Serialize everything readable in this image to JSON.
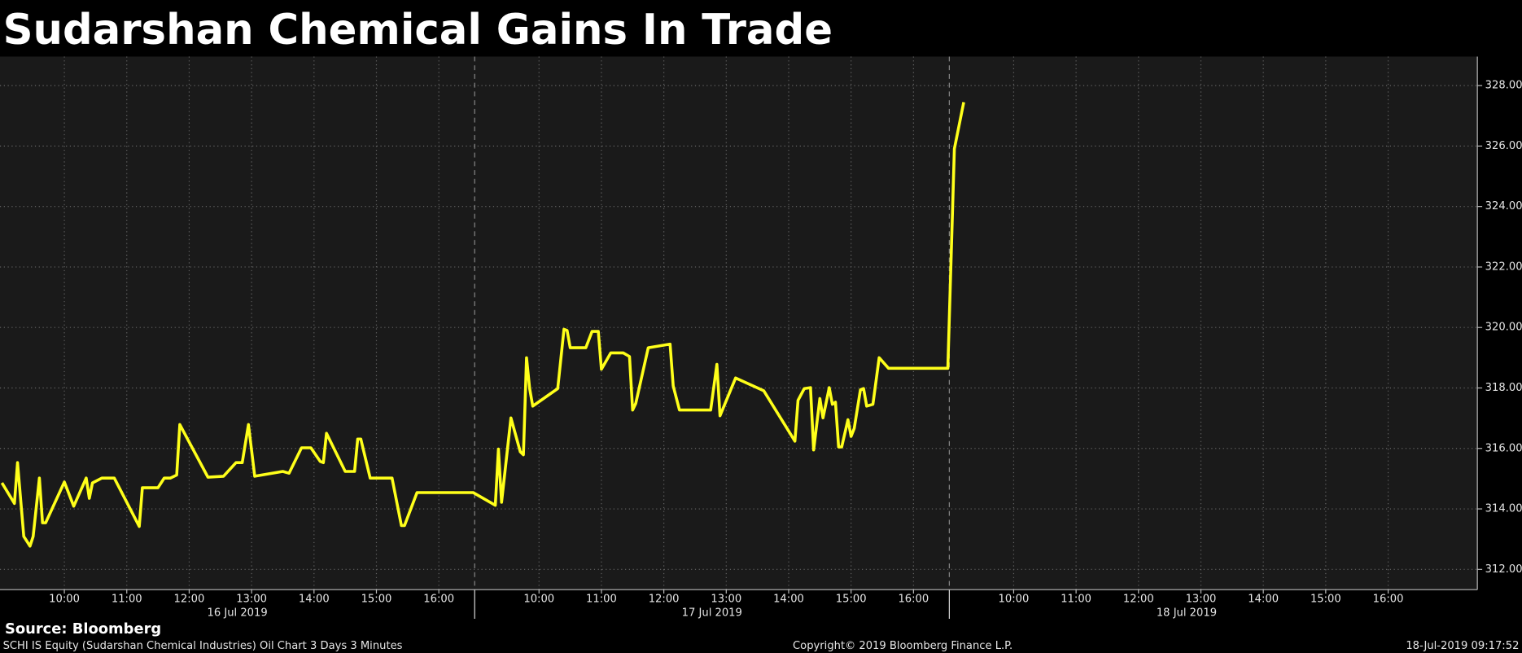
{
  "chart_data": {
    "type": "line",
    "title": "Sudarshan Chemical Gains In Trade",
    "color": "#ffff1a",
    "days": [
      "16 Jul 2019",
      "17 Jul 2019",
      "18 Jul 2019"
    ],
    "hour_ticks": [
      "10:00",
      "11:00",
      "12:00",
      "13:00",
      "14:00",
      "15:00",
      "16:00"
    ],
    "x": [
      "16 Jul 2019 09:00",
      "16 Jul 2019 09:12",
      "16 Jul 2019 09:15",
      "16 Jul 2019 09:21",
      "16 Jul 2019 09:27",
      "16 Jul 2019 09:30",
      "16 Jul 2019 09:36",
      "16 Jul 2019 09:39",
      "16 Jul 2019 09:42",
      "16 Jul 2019 10:00",
      "16 Jul 2019 10:09",
      "16 Jul 2019 10:21",
      "16 Jul 2019 10:24",
      "16 Jul 2019 10:27",
      "16 Jul 2019 10:36",
      "16 Jul 2019 10:48",
      "16 Jul 2019 11:12",
      "16 Jul 2019 11:15",
      "16 Jul 2019 11:30",
      "16 Jul 2019 11:36",
      "16 Jul 2019 11:42",
      "16 Jul 2019 11:48",
      "16 Jul 2019 11:51",
      "16 Jul 2019 12:18",
      "16 Jul 2019 12:33",
      "16 Jul 2019 12:45",
      "16 Jul 2019 12:51",
      "16 Jul 2019 12:57",
      "16 Jul 2019 13:03",
      "16 Jul 2019 13:30",
      "16 Jul 2019 13:36",
      "16 Jul 2019 13:48",
      "16 Jul 2019 13:57",
      "16 Jul 2019 14:06",
      "16 Jul 2019 14:09",
      "16 Jul 2019 14:12",
      "16 Jul 2019 14:30",
      "16 Jul 2019 14:39",
      "16 Jul 2019 14:42",
      "16 Jul 2019 14:45",
      "16 Jul 2019 14:54",
      "16 Jul 2019 15:15",
      "16 Jul 2019 15:24",
      "16 Jul 2019 15:27",
      "16 Jul 2019 15:39",
      "16 Jul 2019 16:33",
      "17 Jul 2019 09:18",
      "17 Jul 2019 09:21",
      "17 Jul 2019 09:24",
      "17 Jul 2019 09:33",
      "17 Jul 2019 09:42",
      "17 Jul 2019 09:45",
      "17 Jul 2019 09:48",
      "17 Jul 2019 09:51",
      "17 Jul 2019 09:54",
      "17 Jul 2019 10:18",
      "17 Jul 2019 10:24",
      "17 Jul 2019 10:27",
      "17 Jul 2019 10:30",
      "17 Jul 2019 10:45",
      "17 Jul 2019 10:51",
      "17 Jul 2019 10:57",
      "17 Jul 2019 11:00",
      "17 Jul 2019 11:09",
      "17 Jul 2019 11:21",
      "17 Jul 2019 11:27",
      "17 Jul 2019 11:30",
      "17 Jul 2019 11:33",
      "17 Jul 2019 11:45",
      "17 Jul 2019 12:06",
      "17 Jul 2019 12:09",
      "17 Jul 2019 12:15",
      "17 Jul 2019 12:45",
      "17 Jul 2019 12:51",
      "17 Jul 2019 12:54",
      "17 Jul 2019 13:09",
      "17 Jul 2019 13:36",
      "17 Jul 2019 14:06",
      "17 Jul 2019 14:09",
      "17 Jul 2019 14:15",
      "17 Jul 2019 14:21",
      "17 Jul 2019 14:24",
      "17 Jul 2019 14:30",
      "17 Jul 2019 14:33",
      "17 Jul 2019 14:39",
      "17 Jul 2019 14:42",
      "17 Jul 2019 14:45",
      "17 Jul 2019 14:48",
      "17 Jul 2019 14:51",
      "17 Jul 2019 14:57",
      "17 Jul 2019 15:00",
      "17 Jul 2019 15:03",
      "17 Jul 2019 15:09",
      "17 Jul 2019 15:12",
      "17 Jul 2019 15:15",
      "17 Jul 2019 15:21",
      "17 Jul 2019 15:27",
      "17 Jul 2019 15:36",
      "17 Jul 2019 16:33",
      "18 Jul 2019 09:03",
      "18 Jul 2019 09:12"
    ],
    "values": [
      314.86,
      314.18,
      315.53,
      313.09,
      312.77,
      313.09,
      315.02,
      313.54,
      313.54,
      314.89,
      314.09,
      315.02,
      314.35,
      314.86,
      315.02,
      315.02,
      313.42,
      314.7,
      314.7,
      315.02,
      315.02,
      315.12,
      316.79,
      315.05,
      315.08,
      315.53,
      315.53,
      316.79,
      315.08,
      315.24,
      315.18,
      316.02,
      316.02,
      315.57,
      315.53,
      316.5,
      315.24,
      315.24,
      316.31,
      316.31,
      315.02,
      315.02,
      313.45,
      313.45,
      314.54,
      314.54,
      314.12,
      315.98,
      314.22,
      317.01,
      315.89,
      315.79,
      319.0,
      317.98,
      317.4,
      317.98,
      319.94,
      319.9,
      319.33,
      319.33,
      319.87,
      319.87,
      318.62,
      319.16,
      319.16,
      319.04,
      317.27,
      317.49,
      319.33,
      319.45,
      318.07,
      317.27,
      317.27,
      318.78,
      317.08,
      318.33,
      317.91,
      316.24,
      317.59,
      317.98,
      318.01,
      315.95,
      317.65,
      317.01,
      318.01,
      317.46,
      317.53,
      316.05,
      316.05,
      316.95,
      316.4,
      316.66,
      317.94,
      317.98,
      317.4,
      317.46,
      319.0,
      318.65,
      318.65,
      325.91,
      327.45
    ],
    "ylim": [
      311.33,
      328.96
    ],
    "yticks": [
      {
        "value": 312,
        "label": "312.00"
      },
      {
        "value": 314,
        "label": "314.00"
      },
      {
        "value": 316,
        "label": "316.00"
      },
      {
        "value": 318,
        "label": "318.00"
      },
      {
        "value": 320,
        "label": "320.00"
      },
      {
        "value": 322,
        "label": "322.00"
      },
      {
        "value": 324,
        "label": "324.00"
      },
      {
        "value": 326,
        "label": "326.00"
      },
      {
        "value": 328,
        "label": "328.00"
      }
    ],
    "grid": true
  },
  "source": "Source: Bloomberg",
  "footer": {
    "left": "SCHI IS Equity (Sudarshan Chemical Industries) Oil Chart 3 Days 3 Minutes",
    "center": "Copyright© 2019 Bloomberg Finance L.P.",
    "right": "18-Jul-2019 09:17:52"
  }
}
